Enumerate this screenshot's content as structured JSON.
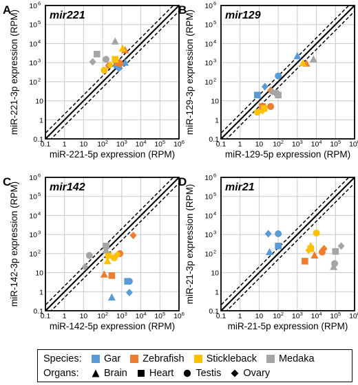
{
  "chart_data": [
    {
      "panel_letter": "A",
      "gene": "mir221",
      "type": "scatter",
      "xlabel": "miR-221-5p expression (RPM)",
      "ylabel": "miR-221-3p expression (RPM)",
      "points": [
        {
          "species": "gar",
          "organ": "brain",
          "x": 1500,
          "y": 1000
        },
        {
          "species": "gar",
          "organ": "heart",
          "x": 550,
          "y": 750
        },
        {
          "species": "gar",
          "organ": "testis",
          "x": 700,
          "y": 650
        },
        {
          "species": "gar",
          "organ": "ovary",
          "x": 700,
          "y": 500
        },
        {
          "species": "zebrafish",
          "organ": "brain",
          "x": 1500,
          "y": 4500
        },
        {
          "species": "zebrafish",
          "organ": "heart",
          "x": 600,
          "y": 1000
        },
        {
          "species": "zebrafish",
          "organ": "testis",
          "x": 800,
          "y": 900
        },
        {
          "species": "zebrafish",
          "organ": "ovary",
          "x": 200,
          "y": 700
        },
        {
          "species": "stickleback",
          "organ": "brain",
          "x": 1100,
          "y": 5500
        },
        {
          "species": "stickleback",
          "organ": "heart",
          "x": 450,
          "y": 1500
        },
        {
          "species": "stickleback",
          "organ": "testis",
          "x": 120,
          "y": 400
        },
        {
          "species": "stickleback",
          "organ": "ovary",
          "x": 250,
          "y": 750
        },
        {
          "species": "medaka",
          "organ": "brain",
          "x": 450,
          "y": 13000
        },
        {
          "species": "medaka",
          "organ": "heart",
          "x": 50,
          "y": 2800
        },
        {
          "species": "medaka",
          "organ": "testis",
          "x": 150,
          "y": 1500
        },
        {
          "species": "medaka",
          "organ": "ovary",
          "x": 30,
          "y": 1100
        }
      ]
    },
    {
      "panel_letter": "B",
      "gene": "mir129",
      "type": "scatter",
      "xlabel": "miR-129-5p expression (RPM)",
      "ylabel": "miR-129-3p expression (RPM)",
      "points": [
        {
          "species": "gar",
          "organ": "brain",
          "x": 1000,
          "y": 2200
        },
        {
          "species": "gar",
          "organ": "heart",
          "x": 8,
          "y": 20
        },
        {
          "species": "gar",
          "organ": "testis",
          "x": 100,
          "y": 200
        },
        {
          "species": "gar",
          "organ": "ovary",
          "x": 20,
          "y": 55
        },
        {
          "species": "zebrafish",
          "organ": "brain",
          "x": 3000,
          "y": 900
        },
        {
          "species": "zebrafish",
          "organ": "heart",
          "x": 15,
          "y": 5
        },
        {
          "species": "zebrafish",
          "organ": "testis",
          "x": 40,
          "y": 5
        },
        {
          "species": "zebrafish",
          "organ": "ovary",
          "x": 40,
          "y": 35
        },
        {
          "species": "stickleback",
          "organ": "brain",
          "x": 2000,
          "y": 950
        },
        {
          "species": "stickleback",
          "organ": "heart",
          "x": 18,
          "y": 4
        },
        {
          "species": "stickleback",
          "organ": "testis",
          "x": 8,
          "y": 2.5
        },
        {
          "species": "stickleback",
          "organ": "ovary",
          "x": 15,
          "y": 3
        },
        {
          "species": "medaka",
          "organ": "brain",
          "x": 7000,
          "y": 1500
        },
        {
          "species": "medaka",
          "organ": "heart",
          "x": 100,
          "y": 20
        },
        {
          "species": "medaka",
          "organ": "testis",
          "x": 80,
          "y": 25
        },
        {
          "species": "medaka",
          "organ": "ovary",
          "x": 50,
          "y": 30
        }
      ]
    },
    {
      "panel_letter": "C",
      "gene": "mir142",
      "type": "scatter",
      "xlabel": "miR-142-5p expression (RPM)",
      "ylabel": "miR-142-3p expression (RPM)",
      "points": [
        {
          "species": "gar",
          "organ": "brain",
          "x": 300,
          "y": 0.5
        },
        {
          "species": "gar",
          "organ": "heart",
          "x": 2000,
          "y": 3.5
        },
        {
          "species": "gar",
          "organ": "testis",
          "x": 2500,
          "y": 3.5
        },
        {
          "species": "gar",
          "organ": "ovary",
          "x": 2500,
          "y": 0.9
        },
        {
          "species": "zebrafish",
          "organ": "brain",
          "x": 120,
          "y": 8
        },
        {
          "species": "zebrafish",
          "organ": "heart",
          "x": 300,
          "y": 7
        },
        {
          "species": "zebrafish",
          "organ": "testis",
          "x": 800,
          "y": 100
        },
        {
          "species": "zebrafish",
          "organ": "ovary",
          "x": 4000,
          "y": 900
        },
        {
          "species": "stickleback",
          "organ": "brain",
          "x": 180,
          "y": 40
        },
        {
          "species": "stickleback",
          "organ": "heart",
          "x": 200,
          "y": 80
        },
        {
          "species": "stickleback",
          "organ": "testis",
          "x": 400,
          "y": 60
        },
        {
          "species": "stickleback",
          "organ": "ovary",
          "x": 600,
          "y": 90
        },
        {
          "species": "medaka",
          "organ": "brain",
          "x": 150,
          "y": 150
        },
        {
          "species": "medaka",
          "organ": "heart",
          "x": 150,
          "y": 250
        },
        {
          "species": "medaka",
          "organ": "testis",
          "x": 20,
          "y": 80
        },
        {
          "species": "medaka",
          "organ": "ovary",
          "x": 12,
          "y": 20
        }
      ]
    },
    {
      "panel_letter": "D",
      "gene": "mir21",
      "type": "scatter",
      "xlabel": "miR-21-5p expression (RPM)",
      "ylabel": "miR-21-3p expression (RPM)",
      "points": [
        {
          "species": "gar",
          "organ": "brain",
          "x": 35,
          "y": 120
        },
        {
          "species": "gar",
          "organ": "heart",
          "x": 100,
          "y": 250
        },
        {
          "species": "gar",
          "organ": "testis",
          "x": 100,
          "y": 1100
        },
        {
          "species": "gar",
          "organ": "ovary",
          "x": 30,
          "y": 1100
        },
        {
          "species": "zebrafish",
          "organ": "brain",
          "x": 8000,
          "y": 80
        },
        {
          "species": "zebrafish",
          "organ": "heart",
          "x": 2500,
          "y": 40
        },
        {
          "species": "zebrafish",
          "organ": "testis",
          "x": 20000,
          "y": 120
        },
        {
          "species": "zebrafish",
          "organ": "ovary",
          "x": 25000,
          "y": 180
        },
        {
          "species": "stickleback",
          "organ": "brain",
          "x": 5000,
          "y": 250
        },
        {
          "species": "stickleback",
          "organ": "heart",
          "x": 5000,
          "y": 180
        },
        {
          "species": "stickleback",
          "organ": "testis",
          "x": 10000,
          "y": 1200
        },
        {
          "species": "stickleback",
          "organ": "ovary",
          "x": 4000,
          "y": 150
        },
        {
          "species": "medaka",
          "organ": "brain",
          "x": 80000,
          "y": 20
        },
        {
          "species": "medaka",
          "organ": "heart",
          "x": 100000,
          "y": 130
        },
        {
          "species": "medaka",
          "organ": "testis",
          "x": 90000,
          "y": 30
        },
        {
          "species": "medaka",
          "organ": "ovary",
          "x": 200000,
          "y": 250
        }
      ]
    }
  ],
  "axis": {
    "scale": "log",
    "range": [
      0.1,
      1000000
    ],
    "tick_values": [
      0.1,
      1,
      10,
      100,
      1000,
      10000,
      100000,
      1000000
    ],
    "tick_labels": [
      {
        "base": "0.1",
        "exp": ""
      },
      {
        "base": "1",
        "exp": ""
      },
      {
        "base": "10",
        "exp": ""
      },
      {
        "base": "10",
        "exp": "2"
      },
      {
        "base": "10",
        "exp": "3"
      },
      {
        "base": "10",
        "exp": "4"
      },
      {
        "base": "10",
        "exp": "5"
      },
      {
        "base": "10",
        "exp": "6"
      }
    ],
    "grid": true,
    "diagonal": "solid line y = x with dashed lines at 2-fold above and below"
  },
  "species": [
    {
      "key": "gar",
      "label": "Gar",
      "color": "#5b9bd5"
    },
    {
      "key": "zebrafish",
      "label": "Zebrafish",
      "color": "#ed7d31"
    },
    {
      "key": "stickleback",
      "label": "Stickleback",
      "color": "#ffc000"
    },
    {
      "key": "medaka",
      "label": "Medaka",
      "color": "#a5a5a5"
    }
  ],
  "organs": [
    {
      "key": "brain",
      "label": "Brain",
      "shape": "triangle"
    },
    {
      "key": "heart",
      "label": "Heart",
      "shape": "square"
    },
    {
      "key": "testis",
      "label": "Testis",
      "shape": "circle"
    },
    {
      "key": "ovary",
      "label": "Ovary",
      "shape": "diamond"
    }
  ],
  "legend": {
    "species_title": "Species:",
    "organs_title": "Organs:",
    "placement": "bottom"
  }
}
